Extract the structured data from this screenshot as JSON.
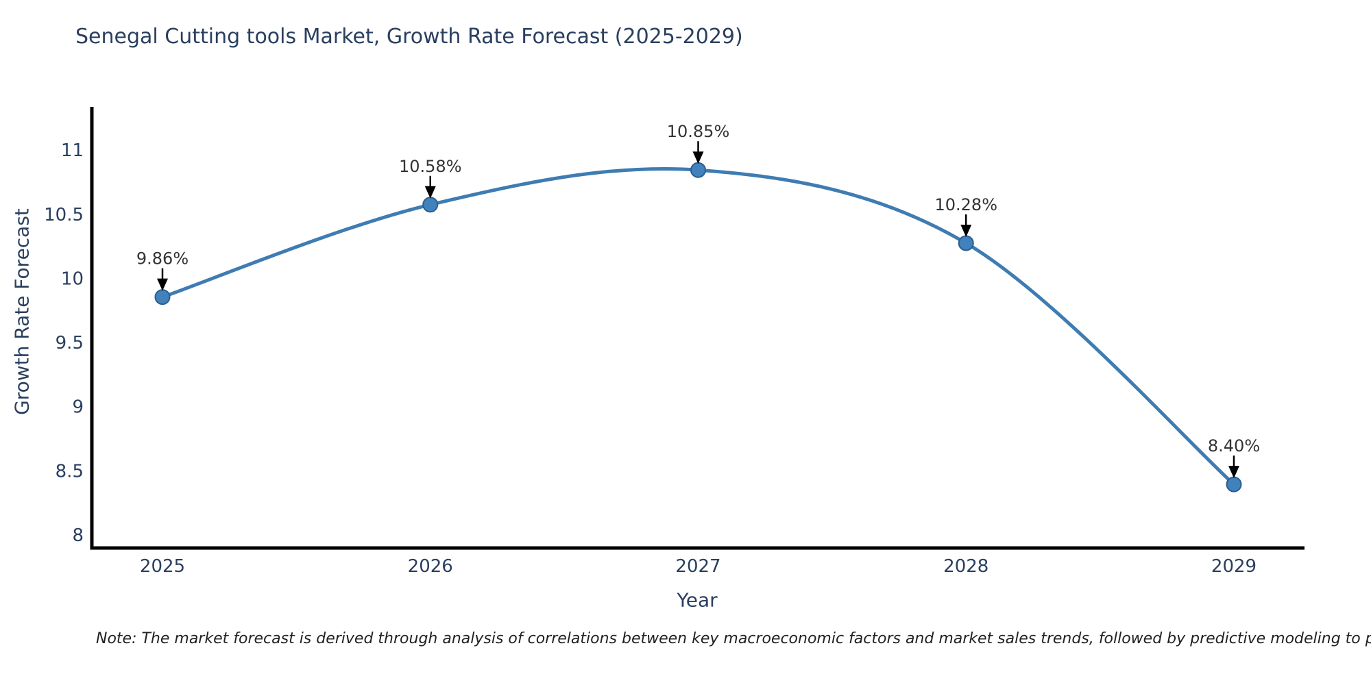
{
  "title": "Senegal Cutting tools Market, Growth Rate Forecast (2025-2029)",
  "note": "Note: The market forecast is derived through analysis of correlations between key macroeconomic factors and market sales trends, followed by predictive modeling to project future sal",
  "chart_data": {
    "type": "line",
    "line_shape": "spline",
    "categories": [
      2025,
      2026,
      2027,
      2028,
      2029
    ],
    "values": [
      9.86,
      10.58,
      10.85,
      10.28,
      8.4
    ],
    "point_labels": [
      "9.86%",
      "10.58%",
      "10.85%",
      "10.28%",
      "8.40%"
    ],
    "title": "Senegal Cutting tools Market, Growth Rate Forecast (2025-2029)",
    "xlabel": "Year",
    "ylabel": "Growth Rate Forecast",
    "yticks": [
      8,
      8.5,
      9,
      9.5,
      10,
      10.5,
      11
    ],
    "ylim": [
      7.9,
      11.35
    ],
    "grid": false,
    "legend": "none",
    "colors": {
      "line": "#3e7cb2",
      "marker_fill": "#4182bd",
      "marker_edge": "#2a5f8e",
      "axis": "#000000",
      "axis_text": "#2a3f5f",
      "annotation_text": "#333333",
      "arrow": "#000000",
      "background": "#ffffff"
    }
  }
}
